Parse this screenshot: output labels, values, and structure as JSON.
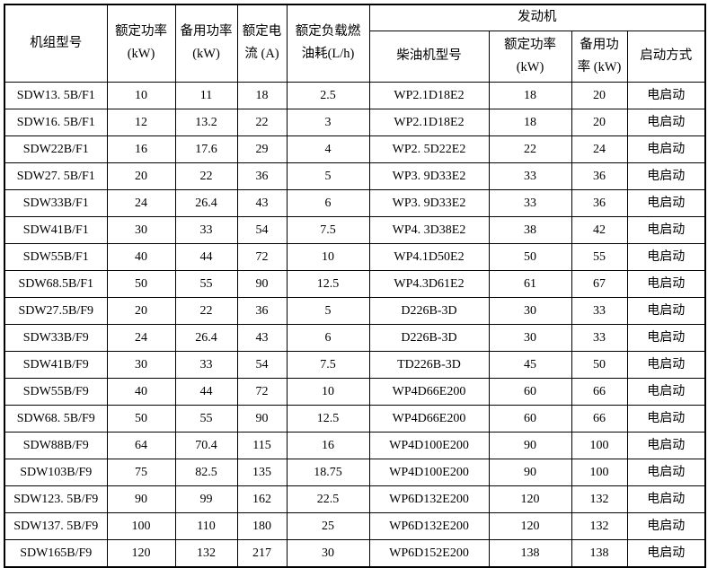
{
  "colors": {
    "background": "#ffffff",
    "border": "#000000",
    "text": "#000000"
  },
  "table": {
    "engine_group_label": "发动机",
    "columns": [
      {
        "id": "unit-model",
        "label": "机组型号"
      },
      {
        "id": "rated-power",
        "label": "额定功率\n(kW)"
      },
      {
        "id": "standby-power",
        "label": "备用功率\n(kW)"
      },
      {
        "id": "rated-current",
        "label": "额定电\n流 (A)"
      },
      {
        "id": "fuel-consumption",
        "label": "额定负载燃\n油耗(L/h)"
      },
      {
        "id": "diesel-model",
        "label": "柴油机型号"
      },
      {
        "id": "engine-rated-power",
        "label": "额定功率\n(kW)"
      },
      {
        "id": "engine-standby-power",
        "label": "备用功\n率 (kW)"
      },
      {
        "id": "start-mode",
        "label": "启动方式"
      }
    ],
    "rows": [
      [
        "SDW13. 5B/F1",
        "10",
        "11",
        "18",
        "2.5",
        "WP2.1D18E2",
        "18",
        "20",
        "电启动"
      ],
      [
        "SDW16. 5B/F1",
        "12",
        "13.2",
        "22",
        "3",
        "WP2.1D18E2",
        "18",
        "20",
        "电启动"
      ],
      [
        "SDW22B/F1",
        "16",
        "17.6",
        "29",
        "4",
        "WP2. 5D22E2",
        "22",
        "24",
        "电启动"
      ],
      [
        "SDW27. 5B/F1",
        "20",
        "22",
        "36",
        "5",
        "WP3. 9D33E2",
        "33",
        "36",
        "电启动"
      ],
      [
        "SDW33B/F1",
        "24",
        "26.4",
        "43",
        "6",
        "WP3. 9D33E2",
        "33",
        "36",
        "电启动"
      ],
      [
        "SDW41B/F1",
        "30",
        "33",
        "54",
        "7.5",
        "WP4. 3D38E2",
        "38",
        "42",
        "电启动"
      ],
      [
        "SDW55B/F1",
        "40",
        "44",
        "72",
        "10",
        "WP4.1D50E2",
        "50",
        "55",
        "电启动"
      ],
      [
        "SDW68.5B/F1",
        "50",
        "55",
        "90",
        "12.5",
        "WP4.3D61E2",
        "61",
        "67",
        "电启动"
      ],
      [
        "SDW27.5B/F9",
        "20",
        "22",
        "36",
        "5",
        "D226B-3D",
        "30",
        "33",
        "电启动"
      ],
      [
        "SDW33B/F9",
        "24",
        "26.4",
        "43",
        "6",
        "D226B-3D",
        "30",
        "33",
        "电启动"
      ],
      [
        "SDW41B/F9",
        "30",
        "33",
        "54",
        "7.5",
        "TD226B-3D",
        "45",
        "50",
        "电启动"
      ],
      [
        "SDW55B/F9",
        "40",
        "44",
        "72",
        "10",
        "WP4D66E200",
        "60",
        "66",
        "电启动"
      ],
      [
        "SDW68. 5B/F9",
        "50",
        "55",
        "90",
        "12.5",
        "WP4D66E200",
        "60",
        "66",
        "电启动"
      ],
      [
        "SDW88B/F9",
        "64",
        "70.4",
        "115",
        "16",
        "WP4D100E200",
        "90",
        "100",
        "电启动"
      ],
      [
        "SDW103B/F9",
        "75",
        "82.5",
        "135",
        "18.75",
        "WP4D100E200",
        "90",
        "100",
        "电启动"
      ],
      [
        "SDW123. 5B/F9",
        "90",
        "99",
        "162",
        "22.5",
        "WP6D132E200",
        "120",
        "132",
        "电启动"
      ],
      [
        "SDW137. 5B/F9",
        "100",
        "110",
        "180",
        "25",
        "WP6D132E200",
        "120",
        "132",
        "电启动"
      ],
      [
        "SDW165B/F9",
        "120",
        "132",
        "217",
        "30",
        "WP6D152E200",
        "138",
        "138",
        "电启动"
      ]
    ]
  }
}
